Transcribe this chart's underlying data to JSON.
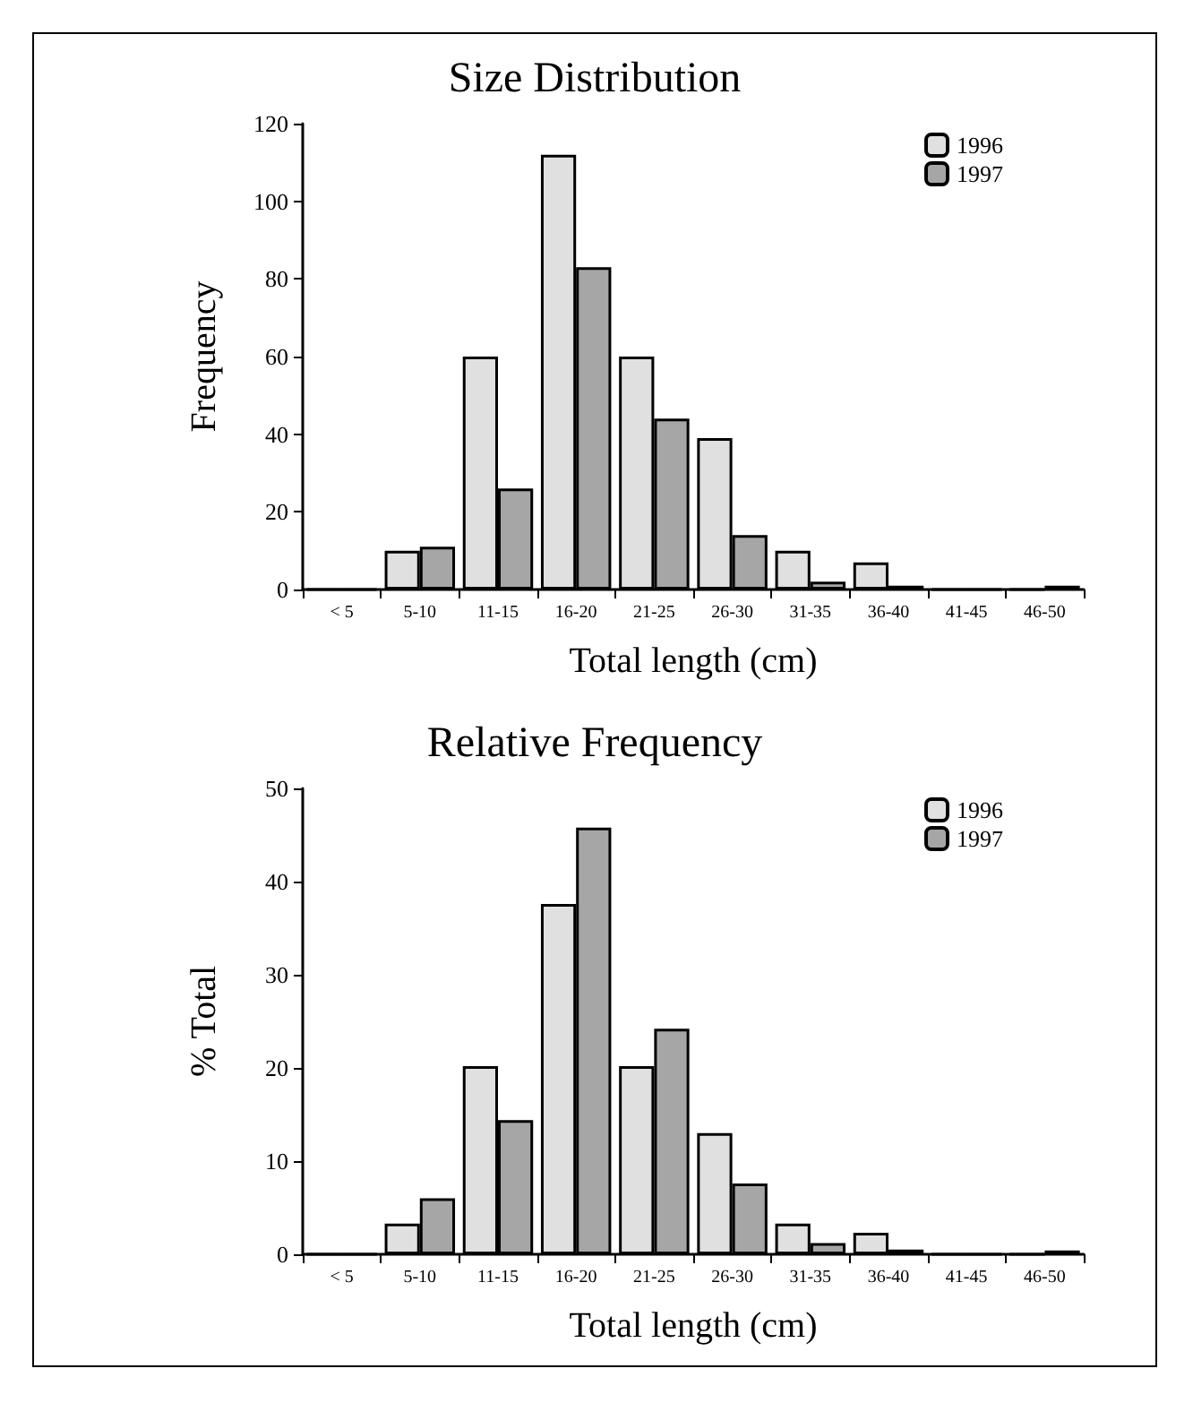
{
  "chart_data": [
    {
      "type": "bar",
      "title": "Size Distribution",
      "xlabel": "Total length (cm)",
      "ylabel": "Frequency",
      "categories": [
        "< 5",
        "5-10",
        "11-15",
        "16-20",
        "21-25",
        "26-30",
        "31-35",
        "36-40",
        "41-45",
        "46-50"
      ],
      "series": [
        {
          "name": "1996",
          "color": "#e0e0e0",
          "values": [
            0,
            10,
            60,
            112,
            60,
            39,
            10,
            7,
            0,
            0
          ]
        },
        {
          "name": "1997",
          "color": "#a6a6a6",
          "values": [
            0,
            11,
            26,
            83,
            44,
            14,
            2,
            1,
            0,
            1
          ]
        }
      ],
      "ylim": [
        0,
        120
      ],
      "yticks": [
        0,
        20,
        40,
        60,
        80,
        100,
        120
      ],
      "grid": false,
      "legend": "top right"
    },
    {
      "type": "bar",
      "title": "Relative Frequency",
      "xlabel": "Total length (cm)",
      "ylabel": "% Total",
      "categories": [
        "< 5",
        "5-10",
        "11-15",
        "16-20",
        "21-25",
        "26-30",
        "31-35",
        "36-40",
        "41-45",
        "46-50"
      ],
      "series": [
        {
          "name": "1996",
          "color": "#e0e0e0",
          "values": [
            0,
            3.3,
            20.2,
            37.6,
            20.2,
            13,
            3.3,
            2.3,
            0,
            0
          ]
        },
        {
          "name": "1997",
          "color": "#a6a6a6",
          "values": [
            0,
            6,
            14.4,
            45.8,
            24.2,
            7.6,
            1.2,
            0.5,
            0,
            0.4
          ]
        }
      ],
      "ylim": [
        0,
        50
      ],
      "yticks": [
        0,
        10,
        20,
        30,
        40,
        50
      ],
      "grid": false,
      "legend": "top right"
    }
  ]
}
